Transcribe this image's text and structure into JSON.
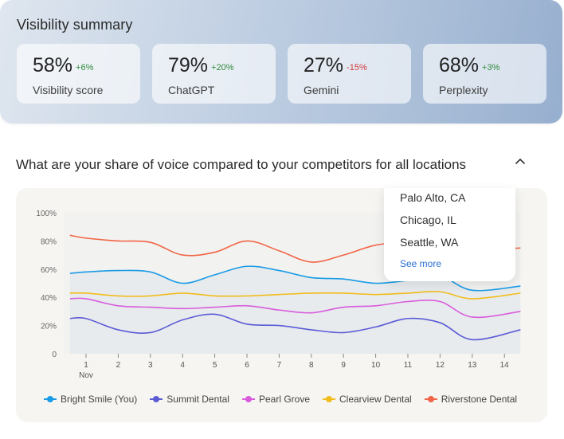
{
  "summary": {
    "title": "Visibility summary",
    "cards": [
      {
        "value": "58%",
        "delta": "+6%",
        "trend": "up",
        "label": "Visibility score"
      },
      {
        "value": "79%",
        "delta": "+20%",
        "trend": "up",
        "label": "ChatGPT"
      },
      {
        "value": "27%",
        "delta": "-15%",
        "trend": "down",
        "label": "Gemini"
      },
      {
        "value": "68%",
        "delta": "+3%",
        "trend": "up",
        "label": "Perplexity"
      }
    ]
  },
  "section": {
    "question": "What are your share of voice compared to your competitors for all locations",
    "toggle_icon": "chevron-up-icon"
  },
  "location_dropdown": {
    "items": [
      "Palo Alto, CA",
      "Chicago, IL",
      "Seattle, WA"
    ],
    "see_more": "See more"
  },
  "chart_data": {
    "type": "line",
    "x": [
      1,
      2,
      3,
      4,
      5,
      6,
      7,
      8,
      9,
      10,
      11,
      12,
      13,
      14
    ],
    "x_tick_labels": [
      "1",
      "2",
      "3",
      "4",
      "5",
      "6",
      "7",
      "8",
      "9",
      "10",
      "11",
      "12",
      "13",
      "14"
    ],
    "x_month_label": "Nov",
    "y_ticks": [
      0,
      20,
      40,
      60,
      80,
      100
    ],
    "y_tick_labels": [
      "0",
      "20%",
      "40%",
      "60%",
      "80%",
      "100%"
    ],
    "ylim": [
      0,
      100
    ],
    "grid": false,
    "legend_position": "bottom",
    "series": [
      {
        "name": "Bright Smile (You)",
        "color": "#1a9be6",
        "filled": true,
        "x": [
          0.5,
          1,
          2,
          3,
          4,
          5,
          6,
          7,
          8,
          9,
          10,
          11,
          12,
          13,
          14.5
        ],
        "values": [
          57,
          58,
          59,
          58,
          50,
          56,
          62,
          59,
          54,
          53,
          50,
          52,
          55,
          45,
          48
        ]
      },
      {
        "name": "Summit Dental",
        "color": "#5b5bd6",
        "filled": false,
        "x": [
          0.5,
          1,
          2,
          3,
          4,
          5,
          6,
          7,
          8,
          9,
          10,
          11,
          12,
          13,
          14.5
        ],
        "values": [
          25,
          25,
          17,
          15,
          24,
          28,
          21,
          20,
          17,
          15,
          19,
          25,
          22,
          10,
          17
        ]
      },
      {
        "name": "Pearl Grove",
        "color": "#d95cdb",
        "filled": false,
        "x": [
          0.5,
          1,
          2,
          3,
          4,
          5,
          6,
          7,
          8,
          9,
          10,
          11,
          12,
          13,
          14.5
        ],
        "values": [
          39,
          39,
          34,
          33,
          32,
          33,
          34,
          31,
          29,
          33,
          34,
          37,
          37,
          26,
          30
        ]
      },
      {
        "name": "Clearview Dental",
        "color": "#f2bc1b",
        "filled": false,
        "x": [
          0.5,
          1,
          2,
          3,
          4,
          5,
          6,
          7,
          8,
          9,
          10,
          11,
          12,
          13,
          14.5
        ],
        "values": [
          43,
          43,
          41,
          41,
          43,
          41,
          41,
          42,
          43,
          43,
          42,
          43,
          44,
          39,
          43
        ]
      },
      {
        "name": "Riverstone Dental",
        "color": "#f26546",
        "filled": false,
        "x": [
          0.5,
          1,
          2,
          3,
          4,
          5,
          6,
          7,
          8,
          9,
          10,
          11,
          12,
          13,
          14.5
        ],
        "values": [
          84,
          82,
          80,
          79,
          70,
          72,
          80,
          73,
          65,
          70,
          77,
          79,
          78,
          74,
          75
        ]
      }
    ]
  }
}
